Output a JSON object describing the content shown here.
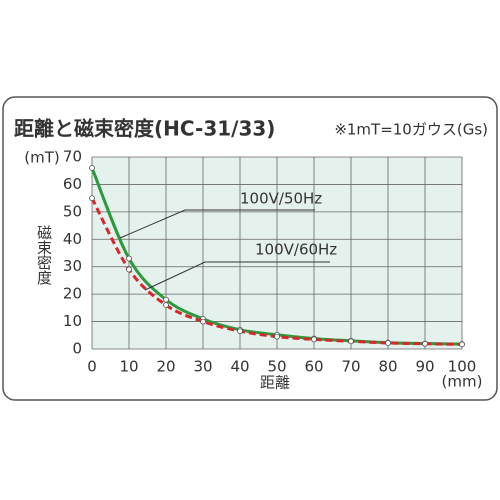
{
  "chart_data": {
    "type": "line",
    "title": "距離と磁束密度(HC-31/33)",
    "note": "※1mT=10ガウス(Gs)",
    "y_label": "磁束密度",
    "y_unit": "(mT)",
    "x_label": "距離",
    "x_unit": "(mm)",
    "x": [
      0,
      10,
      20,
      30,
      40,
      50,
      60,
      70,
      80,
      90,
      100
    ],
    "series": [
      {
        "name": "100V/50Hz",
        "color": "#2a9a3c",
        "dash": false,
        "values": [
          66,
          33,
          18,
          11,
          7,
          5.2,
          3.8,
          3,
          2.3,
          2,
          1.8
        ]
      },
      {
        "name": "100V/60Hz",
        "color": "#d8262a",
        "dash": true,
        "values": [
          55,
          29,
          16,
          10,
          6.5,
          4.5,
          3.5,
          2.8,
          2.2,
          1.9,
          1.7
        ]
      }
    ],
    "xlim": [
      0,
      100
    ],
    "xticks": [
      0,
      10,
      20,
      30,
      40,
      50,
      60,
      70,
      80,
      90,
      100
    ],
    "ylim": [
      0,
      70
    ],
    "yticks": [
      0,
      10,
      20,
      30,
      40,
      50,
      60,
      70
    ],
    "grid": true,
    "plot_background": "#e4f1ec"
  }
}
